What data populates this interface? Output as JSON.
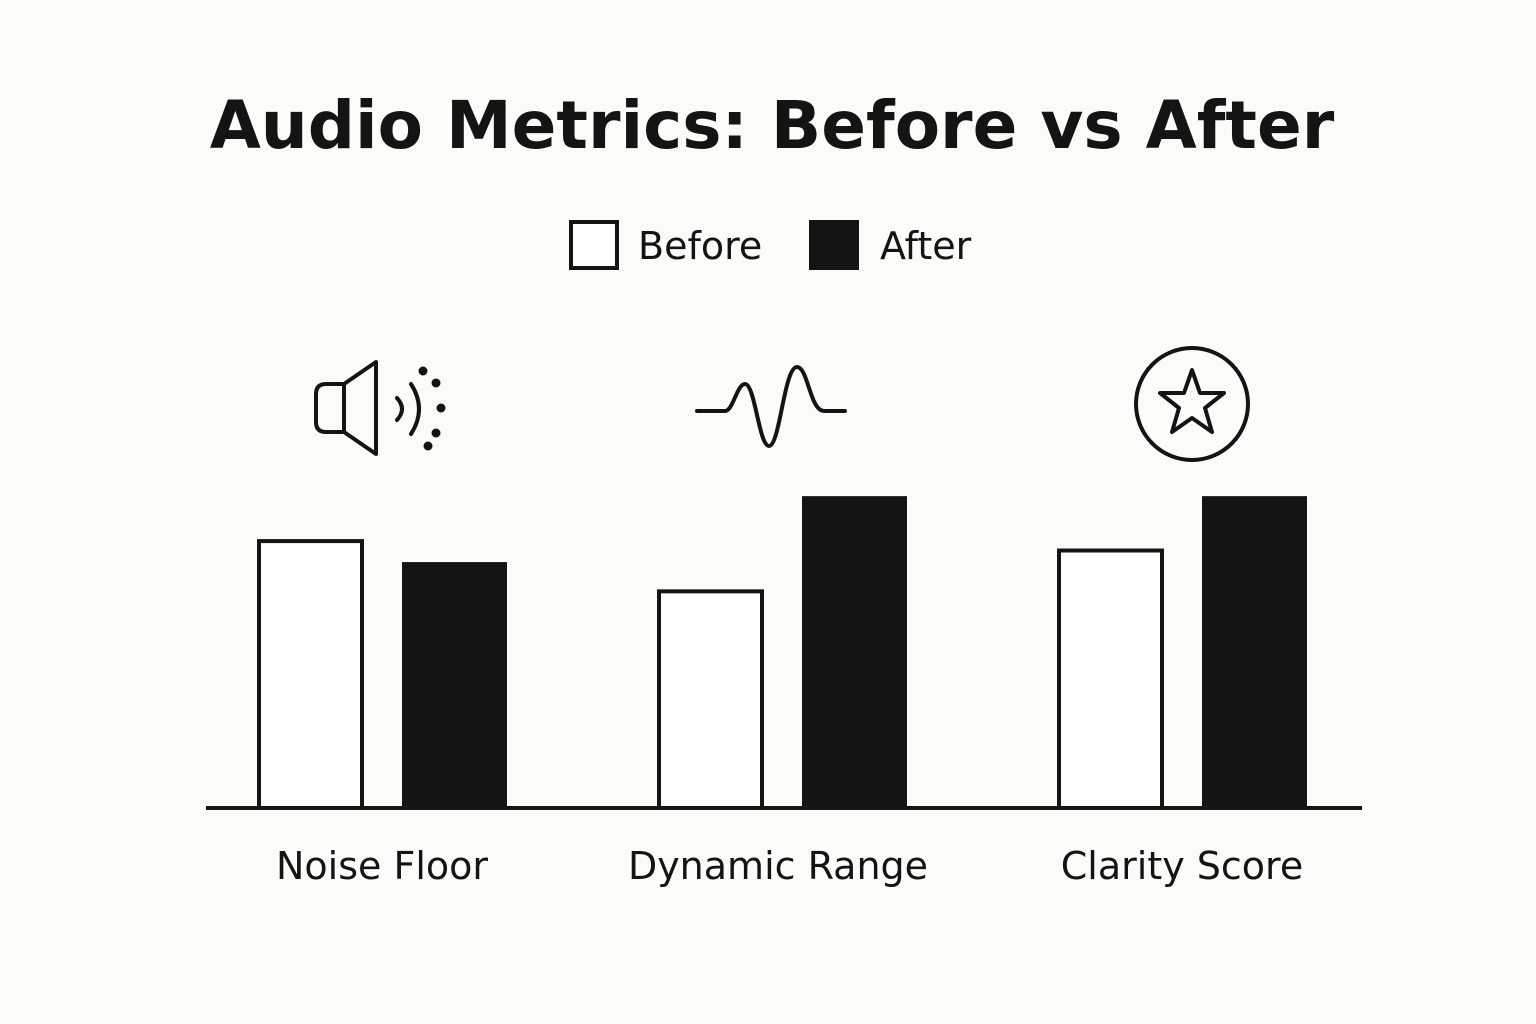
{
  "chart_data": {
    "type": "bar",
    "title": "Audio Metrics: Before vs After",
    "categories": [
      "Noise Floor",
      "Dynamic Range",
      "Clarity Score"
    ],
    "category_icons": [
      "speaker-icon",
      "waveform-icon",
      "star-badge-icon"
    ],
    "series": [
      {
        "name": "Before",
        "values": [
          85,
          69,
          82
        ],
        "style": "outline"
      },
      {
        "name": "After",
        "values": [
          78,
          99,
          99
        ],
        "style": "filled"
      }
    ],
    "xlabel": "",
    "ylabel": "",
    "ylim": [
      0,
      100
    ],
    "grid": false,
    "legend_position": "top-center",
    "y_axis_visible": false
  },
  "colors": {
    "background": "#fcfbf7",
    "ink": "#141414",
    "before_fill": "#ffffff",
    "after_fill": "#141414"
  }
}
